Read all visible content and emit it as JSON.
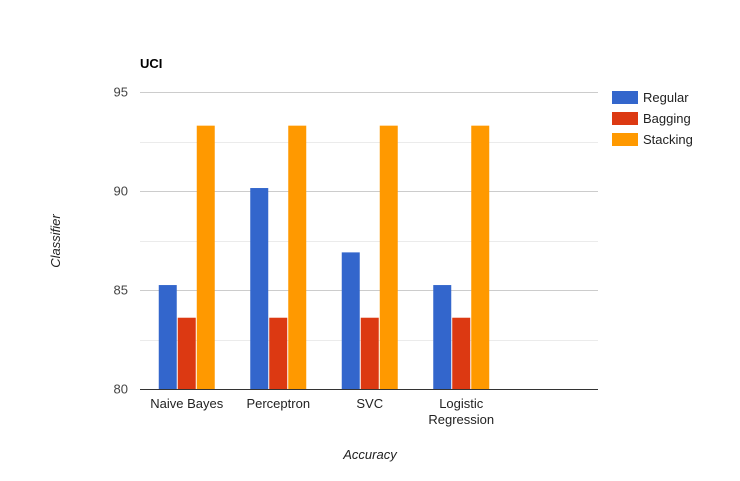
{
  "chart_data": {
    "type": "bar",
    "title": "UCI",
    "xlabel": "Accuracy",
    "ylabel": "Classifier",
    "categories": [
      [
        "Naive Bayes"
      ],
      [
        "Perceptron"
      ],
      [
        "SVC"
      ],
      [
        "Logistic",
        "Regression"
      ]
    ],
    "series": [
      {
        "name": "Regular",
        "color": "#3366cc",
        "values": [
          85.25,
          90.15,
          86.9,
          85.25
        ]
      },
      {
        "name": "Bagging",
        "color": "#dc3912",
        "values": [
          83.6,
          83.6,
          83.6,
          83.6
        ]
      },
      {
        "name": "Stacking",
        "color": "#ff9900",
        "values": [
          93.3,
          93.3,
          93.3,
          93.3
        ]
      }
    ],
    "ylim": [
      80,
      95
    ],
    "yticks": [
      80,
      85,
      90,
      95
    ],
    "minor_gridlines": [
      82.5,
      87.5,
      92.5
    ],
    "grid": true,
    "legend_position": "right"
  }
}
